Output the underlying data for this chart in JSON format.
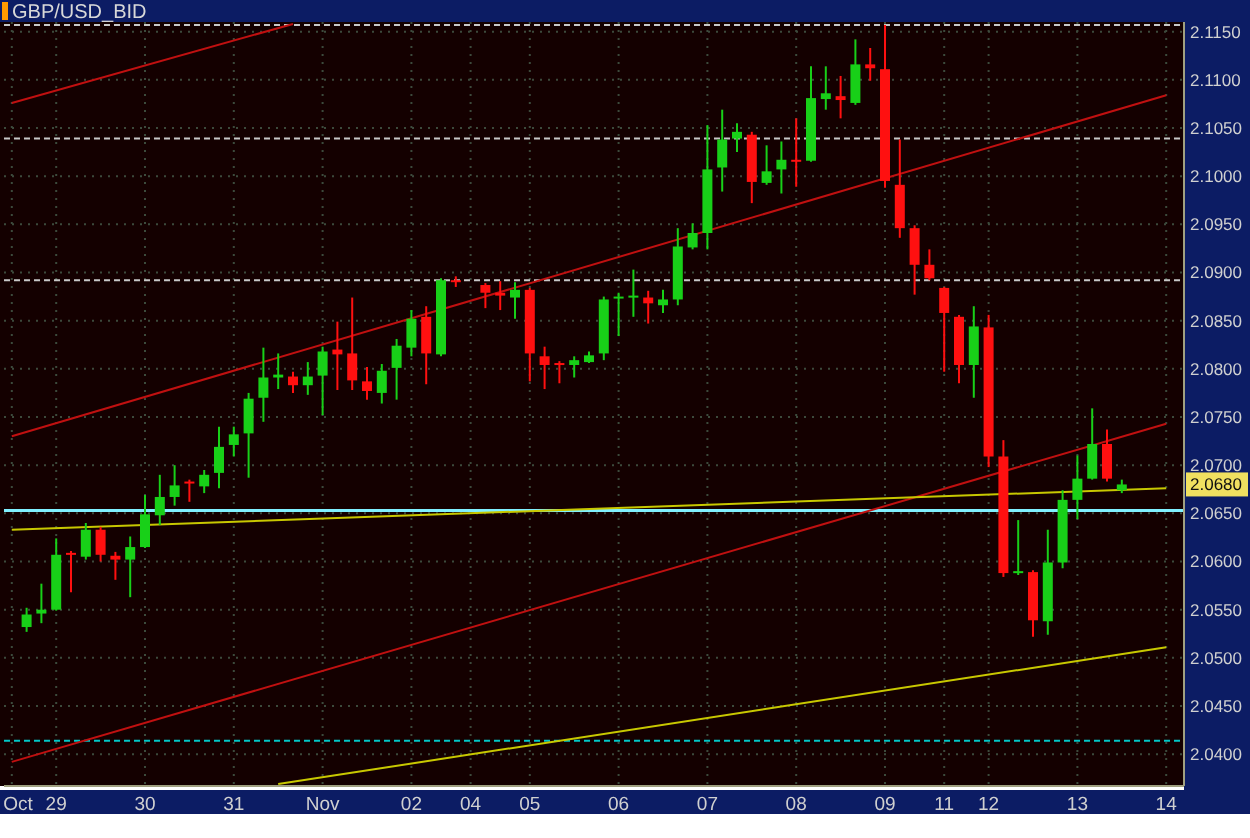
{
  "chart_data": {
    "type": "candlestick",
    "title": "GBP/USD_BID",
    "categories": [
      "Oct",
      null,
      null,
      "29",
      null,
      null,
      null,
      null,
      null,
      "30",
      null,
      null,
      null,
      null,
      null,
      "31",
      null,
      null,
      null,
      null,
      null,
      "Nov",
      null,
      null,
      null,
      null,
      null,
      "02",
      null,
      null,
      null,
      "04",
      null,
      null,
      null,
      "05",
      null,
      null,
      null,
      null,
      null,
      "06",
      null,
      null,
      null,
      null,
      null,
      "07",
      null,
      null,
      null,
      null,
      null,
      "08",
      null,
      null,
      null,
      null,
      null,
      "09",
      null,
      null,
      null,
      "11",
      null,
      null,
      "12",
      null,
      null,
      null,
      null,
      null,
      "13",
      null,
      null,
      null,
      null,
      null,
      "14"
    ],
    "ohlc": [
      null,
      [
        2.0532,
        2.0552,
        2.0527,
        2.0545
      ],
      [
        2.0546,
        2.0577,
        2.0536,
        2.055
      ],
      [
        2.055,
        2.0624,
        2.0549,
        2.0607
      ],
      [
        2.0609,
        2.0611,
        2.0568,
        2.0607
      ],
      [
        2.0605,
        2.064,
        2.0602,
        2.0633
      ],
      [
        2.0633,
        2.0636,
        2.06,
        2.0607
      ],
      [
        2.0606,
        2.061,
        2.0581,
        2.0602
      ],
      [
        2.0602,
        2.0626,
        2.0563,
        2.0615
      ],
      [
        2.0615,
        2.0669,
        2.0614,
        2.0649
      ],
      [
        2.0648,
        2.069,
        2.0638,
        2.0667
      ],
      [
        2.0667,
        2.07,
        2.0658,
        2.0679
      ],
      [
        2.0683,
        2.0685,
        2.0662,
        2.0681
      ],
      [
        2.0678,
        2.0695,
        2.0671,
        2.069
      ],
      [
        2.0692,
        2.074,
        2.0676,
        2.0719
      ],
      [
        2.0721,
        2.074,
        2.0709,
        2.0732
      ],
      [
        2.0733,
        2.0775,
        2.0687,
        2.0769
      ],
      [
        2.077,
        2.0822,
        2.0745,
        2.0791
      ],
      [
        2.0791,
        2.0816,
        2.0779,
        2.0794
      ],
      [
        2.0792,
        2.0797,
        2.0775,
        2.0783
      ],
      [
        2.0783,
        2.0807,
        2.0773,
        2.0792
      ],
      [
        2.0793,
        2.0823,
        2.0752,
        2.0818
      ],
      [
        2.082,
        2.0849,
        2.0778,
        2.0815
      ],
      [
        2.0816,
        2.0874,
        2.0778,
        2.0788
      ],
      [
        2.0787,
        2.0802,
        2.0768,
        2.0777
      ],
      [
        2.0775,
        2.0805,
        2.0764,
        2.0798
      ],
      [
        2.0801,
        2.0831,
        2.0768,
        2.0824
      ],
      [
        2.0822,
        2.0861,
        2.0813,
        2.0852
      ],
      [
        2.0854,
        2.0865,
        2.0784,
        2.0816
      ],
      [
        2.0815,
        2.0894,
        2.0813,
        2.0892
      ],
      [
        2.0892,
        2.0896,
        2.0885,
        2.089
      ],
      null,
      [
        2.0887,
        2.0889,
        2.0863,
        2.0879
      ],
      [
        2.0879,
        2.0891,
        2.0861,
        2.0876
      ],
      [
        2.0874,
        2.089,
        2.0852,
        2.0882
      ],
      [
        2.0882,
        2.0884,
        2.0787,
        2.0816
      ],
      [
        2.0813,
        2.0823,
        2.0779,
        2.0804
      ],
      [
        2.0806,
        2.0808,
        2.0785,
        2.0805
      ],
      [
        2.0804,
        2.0813,
        2.0791,
        2.0809
      ],
      [
        2.0807,
        2.0818,
        2.0806,
        2.0814
      ],
      [
        2.0816,
        2.0875,
        2.0809,
        2.0872
      ],
      [
        2.0873,
        2.0879,
        2.0834,
        2.0875
      ],
      [
        2.0874,
        2.0903,
        2.0854,
        2.0876
      ],
      [
        2.0874,
        2.0881,
        2.0847,
        2.0868
      ],
      [
        2.0866,
        2.0882,
        2.0858,
        2.0872
      ],
      [
        2.0872,
        2.0946,
        2.0866,
        2.0927
      ],
      [
        2.0926,
        2.0951,
        2.0924,
        2.0941
      ],
      [
        2.0941,
        2.1053,
        2.0924,
        2.1007
      ],
      [
        2.1009,
        2.1069,
        2.0984,
        2.1038
      ],
      [
        2.1039,
        2.1055,
        2.1025,
        2.1046
      ],
      [
        2.1043,
        2.1046,
        2.0972,
        2.0994
      ],
      [
        2.0993,
        2.1032,
        2.0991,
        2.1005
      ],
      [
        2.1007,
        2.1036,
        2.0982,
        2.1017
      ],
      [
        2.1017,
        2.106,
        2.0989,
        2.1015
      ],
      [
        2.1016,
        2.1114,
        2.1015,
        2.1081
      ],
      [
        2.108,
        2.1114,
        2.1069,
        2.1086
      ],
      [
        2.1083,
        2.1104,
        2.106,
        2.1079
      ],
      [
        2.1076,
        2.1142,
        2.1074,
        2.1116
      ],
      [
        2.1116,
        2.1133,
        2.1099,
        2.1112
      ],
      [
        2.1111,
        2.1157,
        2.0988,
        2.0995
      ],
      [
        2.0991,
        2.1038,
        2.0936,
        2.0946
      ],
      [
        2.0946,
        2.0949,
        2.0877,
        2.0908
      ],
      [
        2.0908,
        2.0924,
        2.0892,
        2.0894
      ],
      [
        2.0884,
        2.0885,
        2.0797,
        2.0858
      ],
      [
        2.0854,
        2.0856,
        2.0785,
        2.0804
      ],
      [
        2.0804,
        2.0865,
        2.077,
        2.0844
      ],
      [
        2.0843,
        2.0856,
        2.0698,
        2.0709
      ],
      [
        2.0709,
        2.0726,
        2.0584,
        2.0588
      ],
      [
        2.0588,
        2.0643,
        2.0586,
        2.059
      ],
      [
        2.0589,
        2.0591,
        2.0522,
        2.0539
      ],
      [
        2.0538,
        2.0633,
        2.0524,
        2.0599
      ],
      [
        2.0599,
        2.0674,
        2.0593,
        2.0664
      ],
      [
        2.0664,
        2.071,
        2.0644,
        2.0686
      ],
      [
        2.0686,
        2.0759,
        2.0685,
        2.0722
      ],
      [
        2.0722,
        2.0737,
        2.0683,
        2.0686
      ],
      [
        2.0674,
        2.0685,
        2.0671,
        2.068
      ],
      null,
      null,
      null
    ],
    "colors": [
      null,
      "#18d018",
      "#18d018",
      "#18d018",
      "#ff1010",
      "#18d018",
      "#ff1010",
      "#ff1010",
      "#18d018",
      "#18d018",
      "#18d018",
      "#18d018",
      "#ff1010",
      "#18d018",
      "#18d018",
      "#18d018",
      "#18d018",
      "#18d018",
      "#18d018",
      "#ff1010",
      "#18d018",
      "#18d018",
      "#ff1010",
      "#ff1010",
      "#ff1010",
      "#18d018",
      "#18d018",
      "#18d018",
      "#ff1010",
      "#18d018",
      "#ff1010",
      null,
      "#ff1010",
      "#ff1010",
      "#18d018",
      "#ff1010",
      "#ff1010",
      "#ff1010",
      "#18d018",
      "#18d018",
      "#18d018",
      "#18d018",
      "#18d018",
      "#ff1010",
      "#18d018",
      "#18d018",
      "#18d018",
      "#18d018",
      "#18d018",
      "#18d018",
      "#ff1010",
      "#18d018",
      "#18d018",
      "#ff1010",
      "#18d018",
      "#18d018",
      "#ff1010",
      "#18d018",
      "#ff1010",
      "#ff1010",
      "#ff1010",
      "#ff1010",
      "#ff1010",
      "#ff1010",
      "#ff1010",
      "#18d018",
      "#ff1010",
      "#ff1010",
      "#18d018",
      "#ff1010",
      "#18d018",
      "#18d018",
      "#18d018",
      "#18d018",
      "#ff1010",
      "#18d018",
      null,
      null,
      null
    ],
    "series": [
      {
        "type": "line",
        "color": "#c01010",
        "values": [
          2.1076,
          null,
          null,
          null,
          null,
          null,
          null,
          null,
          null,
          null,
          null,
          null,
          null,
          null,
          null,
          null,
          null,
          null,
          null,
          2.1158,
          null,
          null,
          null,
          null,
          null,
          null,
          null,
          null,
          null,
          null,
          null,
          null,
          null,
          null,
          null,
          null,
          null,
          null,
          null,
          null,
          null,
          null,
          null,
          null,
          null,
          null,
          null,
          null,
          null,
          null,
          null,
          null,
          null,
          null,
          null,
          null,
          null,
          null,
          null,
          null,
          null,
          null,
          null,
          null,
          null,
          null,
          null,
          null,
          null,
          null,
          null,
          null,
          null,
          null,
          null,
          null,
          null,
          null,
          null
        ]
      },
      {
        "type": "line",
        "color": "#c01010",
        "values": [
          2.073,
          null,
          null,
          null,
          null,
          null,
          null,
          null,
          null,
          null,
          null,
          null,
          null,
          null,
          null,
          null,
          null,
          null,
          null,
          null,
          null,
          null,
          null,
          null,
          null,
          null,
          null,
          null,
          null,
          null,
          null,
          null,
          null,
          null,
          null,
          null,
          null,
          null,
          null,
          null,
          null,
          null,
          null,
          null,
          null,
          null,
          null,
          null,
          null,
          null,
          null,
          null,
          null,
          null,
          null,
          null,
          null,
          null,
          null,
          null,
          null,
          null,
          null,
          null,
          null,
          null,
          null,
          null,
          null,
          null,
          null,
          null,
          null,
          null,
          null,
          null,
          null,
          null,
          2.1084
        ]
      },
      {
        "type": "line",
        "color": "#c01010",
        "values": [
          2.0392,
          null,
          null,
          null,
          null,
          null,
          null,
          null,
          null,
          null,
          null,
          null,
          null,
          null,
          null,
          null,
          null,
          null,
          null,
          null,
          null,
          null,
          null,
          null,
          null,
          null,
          null,
          null,
          null,
          null,
          null,
          null,
          null,
          null,
          null,
          null,
          null,
          null,
          null,
          null,
          null,
          null,
          null,
          null,
          null,
          null,
          null,
          null,
          null,
          null,
          null,
          null,
          null,
          null,
          null,
          null,
          null,
          null,
          null,
          null,
          null,
          null,
          null,
          null,
          null,
          null,
          null,
          null,
          null,
          null,
          null,
          null,
          null,
          null,
          null,
          null,
          null,
          null,
          2.0743
        ]
      },
      {
        "type": "line",
        "color": "#c8c800",
        "values": [
          2.0633,
          null,
          null,
          null,
          null,
          null,
          null,
          null,
          null,
          null,
          null,
          null,
          null,
          null,
          null,
          null,
          null,
          null,
          null,
          null,
          null,
          null,
          null,
          null,
          null,
          null,
          null,
          null,
          null,
          null,
          null,
          null,
          null,
          null,
          null,
          null,
          null,
          null,
          null,
          null,
          null,
          null,
          null,
          null,
          null,
          null,
          null,
          null,
          null,
          null,
          null,
          null,
          null,
          null,
          null,
          null,
          null,
          null,
          null,
          null,
          null,
          null,
          null,
          null,
          null,
          null,
          null,
          null,
          null,
          null,
          null,
          null,
          null,
          null,
          null,
          null,
          null,
          null,
          2.0676
        ]
      },
      {
        "type": "line",
        "color": "#c8c800",
        "values": [
          null,
          null,
          null,
          null,
          null,
          null,
          null,
          null,
          null,
          null,
          null,
          null,
          null,
          null,
          null,
          null,
          null,
          null,
          2.0369,
          null,
          null,
          null,
          null,
          null,
          null,
          null,
          null,
          null,
          null,
          null,
          null,
          null,
          null,
          null,
          null,
          null,
          null,
          null,
          null,
          null,
          null,
          null,
          null,
          null,
          null,
          null,
          null,
          null,
          null,
          null,
          null,
          null,
          null,
          null,
          null,
          null,
          null,
          null,
          null,
          null,
          null,
          null,
          null,
          null,
          null,
          null,
          null,
          null,
          null,
          null,
          null,
          null,
          null,
          null,
          null,
          null,
          null,
          null,
          2.0511
        ]
      }
    ],
    "ref_lines": [
      {
        "axis": "y",
        "value": 2.1157,
        "color": "#c8c8c8",
        "line_style": "dashed"
      },
      {
        "axis": "y",
        "value": 2.1039,
        "color": "#c8c8c8",
        "line_style": "dashed"
      },
      {
        "axis": "y",
        "value": 2.0892,
        "color": "#c8c8c8",
        "line_style": "dashed"
      },
      {
        "axis": "y",
        "value": 2.0653,
        "color": "#80f0ff",
        "line_style": "solid"
      },
      {
        "axis": "y",
        "value": 2.0414,
        "color": "#00c8c8",
        "line_style": "dashed"
      }
    ],
    "annotations": [
      {
        "text": "2.0680",
        "y": 2.068
      }
    ],
    "ylim": [
      2.0367,
      2.116
    ],
    "yticks": [
      {
        "value": 2.04,
        "label": "2.0400"
      },
      {
        "value": 2.045,
        "label": "2.0450"
      },
      {
        "value": 2.05,
        "label": "2.0500"
      },
      {
        "value": 2.055,
        "label": "2.0550"
      },
      {
        "value": 2.06,
        "label": "2.0600"
      },
      {
        "value": 2.065,
        "label": "2.0650"
      },
      {
        "value": 2.07,
        "label": "2.0700"
      },
      {
        "value": 2.075,
        "label": "2.0750"
      },
      {
        "value": 2.08,
        "label": "2.0800"
      },
      {
        "value": 2.085,
        "label": "2.0850"
      },
      {
        "value": 2.09,
        "label": "2.0900"
      },
      {
        "value": 2.095,
        "label": "2.0950"
      },
      {
        "value": 2.1,
        "label": "2.1000"
      },
      {
        "value": 2.105,
        "label": "2.1050"
      },
      {
        "value": 2.11,
        "label": "2.1100"
      },
      {
        "value": 2.115,
        "label": "2.1150"
      }
    ],
    "grid": true
  }
}
